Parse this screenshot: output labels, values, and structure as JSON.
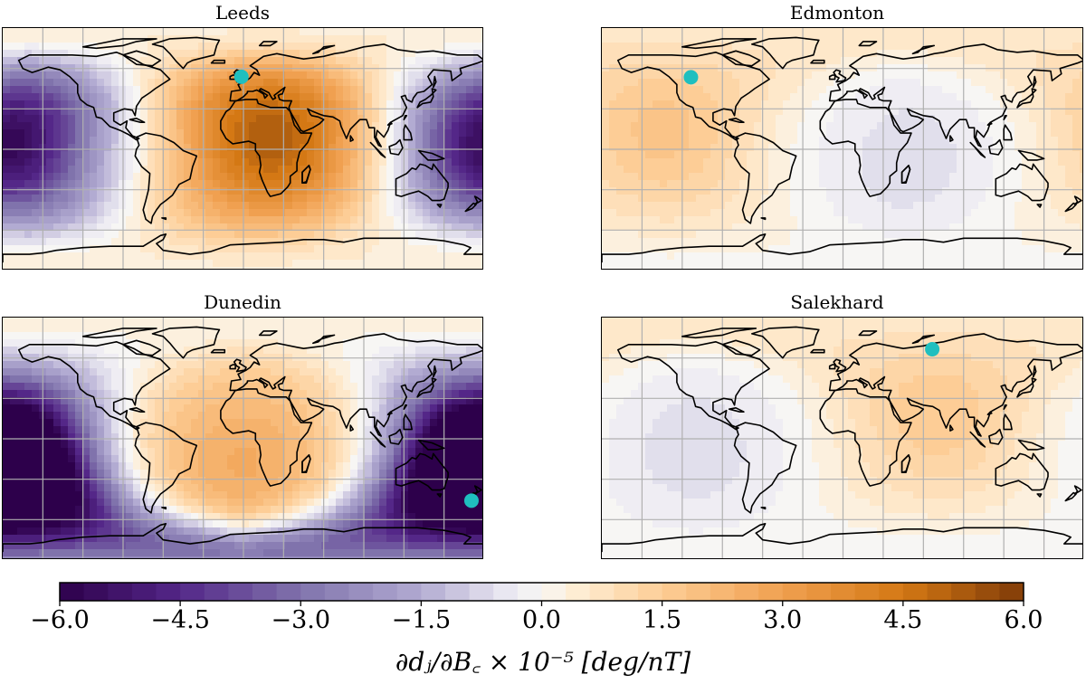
{
  "chart_data": [
    {
      "type": "heatmap",
      "title": "Leeds",
      "site": {
        "name": "Leeds",
        "lon": -1.5,
        "lat": 53.8
      },
      "extent": {
        "lon": [
          -180,
          180
        ],
        "lat": [
          -90,
          90
        ]
      },
      "anomalies": [
        {
          "lon": 20,
          "lat": 10,
          "value": 5.2,
          "spread_deg": 55
        },
        {
          "lon": -160,
          "lat": 20,
          "value": -3.2,
          "spread_deg": 50
        },
        {
          "lon": 175,
          "lat": -5,
          "value": -3.0,
          "spread_deg": 40
        }
      ],
      "gridlines": true
    },
    {
      "type": "heatmap",
      "title": "Edmonton",
      "site": {
        "name": "Edmonton",
        "lon": -113.5,
        "lat": 53.5
      },
      "extent": {
        "lon": [
          -180,
          180
        ],
        "lat": [
          -90,
          90
        ]
      },
      "anomalies": [
        {
          "lon": -135,
          "lat": 15,
          "value": 1.8,
          "spread_deg": 55
        },
        {
          "lon": 50,
          "lat": -10,
          "value": -0.6,
          "spread_deg": 60
        }
      ],
      "gridlines": true
    },
    {
      "type": "heatmap",
      "title": "Dunedin",
      "site": {
        "name": "Dunedin",
        "lon": 170.5,
        "lat": -45.9
      },
      "extent": {
        "lon": [
          -180,
          180
        ],
        "lat": [
          -90,
          90
        ]
      },
      "anomalies": [
        {
          "lon": -180,
          "lat": -25,
          "value": -5.8,
          "spread_deg": 45
        },
        {
          "lon": 180,
          "lat": -25,
          "value": -5.8,
          "spread_deg": 45
        },
        {
          "lon": 0,
          "lat": -20,
          "value": 2.6,
          "spread_deg": 70
        }
      ],
      "gridlines": true
    },
    {
      "type": "heatmap",
      "title": "Salekhard",
      "site": {
        "name": "Salekhard",
        "lon": 66.6,
        "lat": 66.5
      },
      "extent": {
        "lon": [
          -180,
          180
        ],
        "lat": [
          -90,
          90
        ]
      },
      "anomalies": [
        {
          "lon": 70,
          "lat": 20,
          "value": 1.6,
          "spread_deg": 55
        },
        {
          "lon": -110,
          "lat": -10,
          "value": -0.6,
          "spread_deg": 60
        }
      ],
      "gridlines": true
    }
  ],
  "colorbar": {
    "min": -6.0,
    "max": 6.0,
    "ticks": [
      "−6.0",
      "−4.5",
      "−3.0",
      "−1.5",
      "0.0",
      "1.5",
      "3.0",
      "4.5",
      "6.0"
    ],
    "label": "∂dⱼ/∂B꜀ × 10⁻⁵ [deg/nT]",
    "colormap": "PuOr_r",
    "colors": {
      "low": "#2d004b",
      "mid": "#f2f0f4",
      "high": "#7f3b08"
    }
  },
  "marker_color": "#1fbfbf"
}
